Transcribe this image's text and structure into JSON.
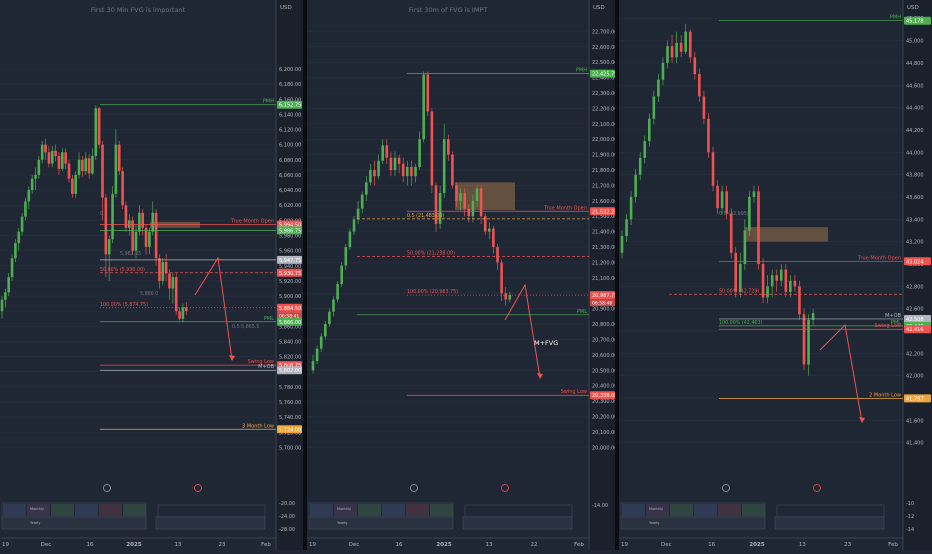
{
  "chart_data": [
    {
      "type": "candlestick",
      "title": "First 30 Min FVG is important",
      "currency": "USD",
      "x_ticks": [
        "19",
        "Dec",
        "16",
        "2025",
        "13",
        "23",
        "Feb"
      ],
      "y_range": [
        5690,
        6270
      ],
      "y_ticks": [
        "6,200.00",
        "6,180.00",
        "6,160.00",
        "6,140.00",
        "6,120.00",
        "6,100.00",
        "6,080.00",
        "6,060.00",
        "6,040.00",
        "6,020.00",
        "6,000.00",
        "5,980.00",
        "5,960.00",
        "5,940.00",
        "5,920.00",
        "5,900.00",
        "5,880.00",
        "5,860.00",
        "5,840.00",
        "5,820.00",
        "5,800.00",
        "5,780.00",
        "5,760.00",
        "5,740.00",
        "5,720.00",
        "5,700.00"
      ],
      "lower_ticks": [
        "-20.00",
        "-24.00",
        "-28.00"
      ],
      "candles": [
        [
          5880,
          5895,
          5870,
          5900
        ],
        [
          5895,
          5905,
          5885,
          5910
        ],
        [
          5905,
          5925,
          5900,
          5930
        ],
        [
          5925,
          5950,
          5920,
          5955
        ],
        [
          5950,
          5970,
          5945,
          5975
        ],
        [
          5970,
          5985,
          5960,
          5990
        ],
        [
          5985,
          6005,
          5980,
          6010
        ],
        [
          6005,
          6025,
          6000,
          6030
        ],
        [
          6025,
          6040,
          6015,
          6045
        ],
        [
          6040,
          6055,
          6035,
          6060
        ],
        [
          6055,
          6060,
          6040,
          6070
        ],
        [
          6060,
          6080,
          6055,
          6085
        ],
        [
          6080,
          6100,
          6075,
          6105
        ],
        [
          6100,
          6090,
          6080,
          6108
        ],
        [
          6090,
          6075,
          6070,
          6098
        ],
        [
          6075,
          6092,
          6070,
          6098
        ],
        [
          6092,
          6085,
          6078,
          6100
        ],
        [
          6085,
          6068,
          6060,
          6090
        ],
        [
          6068,
          6090,
          6065,
          6095
        ],
        [
          6090,
          6075,
          6068,
          6095
        ],
        [
          6075,
          6055,
          6050,
          6080
        ],
        [
          6055,
          6035,
          6030,
          6060
        ],
        [
          6035,
          6060,
          6030,
          6065
        ],
        [
          6060,
          6080,
          6055,
          6090
        ],
        [
          6080,
          6065,
          6058,
          6085
        ],
        [
          6065,
          6082,
          6060,
          6090
        ],
        [
          6082,
          6062,
          6055,
          6088
        ],
        [
          6062,
          6085,
          6060,
          6095
        ],
        [
          6085,
          6148,
          6080,
          6152
        ],
        [
          6148,
          6100,
          6095,
          6150
        ],
        [
          6100,
          6030,
          6000,
          6105
        ],
        [
          6030,
          5955,
          5925,
          6035
        ],
        [
          5955,
          5975,
          5920,
          5980
        ],
        [
          5975,
          6035,
          5970,
          6045
        ],
        [
          6035,
          6100,
          6030,
          6120
        ],
        [
          6100,
          6065,
          6060,
          6105
        ],
        [
          6065,
          6020,
          6015,
          6070
        ],
        [
          6020,
          5990,
          5985,
          6025
        ],
        [
          5990,
          6000,
          5980,
          6008
        ],
        [
          6000,
          5960,
          5955,
          6005
        ],
        [
          5960,
          5985,
          5950,
          5995
        ],
        [
          5985,
          6010,
          5980,
          6020
        ],
        [
          6010,
          5990,
          5980,
          6015
        ],
        [
          5990,
          5965,
          5955,
          5995
        ],
        [
          5965,
          5985,
          5955,
          5990
        ],
        [
          5985,
          6010,
          5980,
          6025
        ],
        [
          6010,
          5950,
          5940,
          6015
        ],
        [
          5950,
          5920,
          5910,
          5955
        ],
        [
          5920,
          5945,
          5915,
          5950
        ],
        [
          5945,
          5930,
          5920,
          5955
        ],
        [
          5930,
          5910,
          5895,
          5935
        ],
        [
          5910,
          5925,
          5890,
          5930
        ],
        [
          5925,
          5880,
          5875,
          5930
        ],
        [
          5880,
          5870,
          5868,
          5885
        ],
        [
          5870,
          5885,
          5865,
          5890
        ],
        [
          5885,
          5880,
          5875,
          5892
        ]
      ],
      "volume_panel": {
        "labels": [
          "Monthly",
          "Yearly"
        ]
      },
      "levels": [
        {
          "label": "PMH",
          "value": "6,152.75",
          "color": "#4caf50",
          "style": "solid"
        },
        {
          "label": "True Month Open",
          "value": "5,994.50",
          "color": "#ef5350",
          "style": "solid"
        },
        {
          "label": "",
          "value": "5,986.75",
          "color": "#4caf50",
          "style": "solid"
        },
        {
          "label": "",
          "value": "5,947.75",
          "color": "#b2b5be",
          "style": "solid"
        },
        {
          "label": "",
          "value": "5,930.75",
          "color": "#ef5350",
          "style": "dashed",
          "fib": "50.00% (5,930.00)"
        },
        {
          "label": "",
          "value": "5,884.50",
          "color": "#ef5350",
          "style": "dotted",
          "sub": "06:58:41",
          "fib": "100.00% (5,874.75)"
        },
        {
          "label": "PML",
          "value": "5,866.00",
          "color": "#4caf50",
          "style": "solid",
          "extra": "0.5  5,865.5"
        },
        {
          "label": "Swing Low",
          "value": "5,808.75",
          "color": "#ef5350",
          "style": "solid"
        },
        {
          "label": "M+OB",
          "value": "5,802.00",
          "color": "#b2b5be",
          "style": "solid"
        },
        {
          "label": "3 Month Low",
          "value": "5,724.00",
          "color": "#f0a53a",
          "style": "solid"
        }
      ],
      "partial_fib_labels": [
        "0",
        "5,981.25",
        "5,866.0"
      ]
    },
    {
      "type": "candlestick",
      "title": "First 30m of FVG is IMPT",
      "currency": "USD",
      "x_ticks": [
        "19",
        "Dec",
        "16",
        "2025",
        "13",
        "22",
        "Feb"
      ],
      "y_range": [
        19950,
        22800
      ],
      "y_ticks": [
        "22,700.00",
        "22,600.00",
        "22,500.00",
        "22,400.00",
        "22,300.00",
        "22,200.00",
        "22,100.00",
        "22,000.00",
        "21,900.00",
        "21,800.00",
        "21,700.00",
        "21,600.00",
        "21,500.00",
        "21,400.00",
        "21,300.00",
        "21,200.00",
        "21,100.00",
        "21,000.00",
        "20,900.00",
        "20,800.00",
        "20,700.00",
        "20,600.00",
        "20,500.00",
        "20,400.00",
        "20,300.00",
        "20,200.00",
        "20,100.00",
        "20,000.00"
      ],
      "lower_ticks": [
        "-14.00"
      ],
      "candles": [
        [
          20500,
          20560,
          20480,
          20600
        ],
        [
          20560,
          20640,
          20540,
          20660
        ],
        [
          20640,
          20720,
          20620,
          20740
        ],
        [
          20720,
          20800,
          20700,
          20820
        ],
        [
          20800,
          20880,
          20780,
          20900
        ],
        [
          20880,
          20960,
          20850,
          20980
        ],
        [
          20960,
          21060,
          20940,
          21080
        ],
        [
          21060,
          21180,
          21040,
          21200
        ],
        [
          21180,
          21300,
          21150,
          21320
        ],
        [
          21300,
          21400,
          21280,
          21420
        ],
        [
          21400,
          21480,
          21380,
          21500
        ],
        [
          21480,
          21550,
          21450,
          21600
        ],
        [
          21550,
          21640,
          21520,
          21660
        ],
        [
          21640,
          21720,
          21600,
          21760
        ],
        [
          21720,
          21800,
          21700,
          21840
        ],
        [
          21800,
          21760,
          21700,
          21860
        ],
        [
          21760,
          21860,
          21740,
          21900
        ],
        [
          21860,
          21960,
          21840,
          22000
        ],
        [
          21960,
          21880,
          21840,
          22000
        ],
        [
          21880,
          21800,
          21760,
          21920
        ],
        [
          21800,
          21880,
          21760,
          21920
        ],
        [
          21880,
          21840,
          21780,
          21900
        ],
        [
          21840,
          21760,
          21720,
          21880
        ],
        [
          21760,
          21820,
          21700,
          21860
        ],
        [
          21820,
          21760,
          21700,
          21860
        ],
        [
          21760,
          21820,
          21720,
          21840
        ],
        [
          21820,
          22000,
          21800,
          22050
        ],
        [
          22000,
          22420,
          21980,
          22440
        ],
        [
          22420,
          22180,
          22150,
          22440
        ],
        [
          22180,
          21700,
          21650,
          22200
        ],
        [
          21700,
          21450,
          21400,
          21720
        ],
        [
          21450,
          21650,
          21420,
          21700
        ],
        [
          21650,
          22000,
          21620,
          22100
        ],
        [
          22000,
          21900,
          21860,
          22030
        ],
        [
          21900,
          21700,
          21680,
          21920
        ],
        [
          21700,
          21600,
          21560,
          21720
        ],
        [
          21600,
          21650,
          21540,
          21680
        ],
        [
          21650,
          21550,
          21500,
          21680
        ],
        [
          21550,
          21500,
          21460,
          21580
        ],
        [
          21500,
          21600,
          21460,
          21640
        ],
        [
          21600,
          21680,
          21560,
          21700
        ],
        [
          21680,
          21500,
          21450,
          21700
        ],
        [
          21500,
          21400,
          21380,
          21520
        ],
        [
          21400,
          21420,
          21350,
          21460
        ],
        [
          21420,
          21300,
          21260,
          21440
        ],
        [
          21300,
          21200,
          21150,
          21320
        ],
        [
          21200,
          21000,
          20950,
          21220
        ],
        [
          21000,
          20960,
          20920,
          21040
        ],
        [
          20960,
          20990,
          20940,
          21010
        ]
      ],
      "volume_panel": {
        "labels": [
          "Monthly",
          "Yearly"
        ]
      },
      "levels": [
        {
          "label": "PMH",
          "value": "22,425.75",
          "color": "#4caf50",
          "style": "solid"
        },
        {
          "label": "True Month Open",
          "value": "21,532.25",
          "color": "#ef5350",
          "style": "solid"
        },
        {
          "label": "",
          "value": "",
          "color": "#f0a53a",
          "style": "dashed",
          "fib": "0.5 (21,483.00)"
        },
        {
          "label": "",
          "value": "",
          "color": "#ef5350",
          "style": "dashed",
          "fib": "50.00% (21,238.00)"
        },
        {
          "label": "",
          "value": "20,987.75",
          "color": "#ef5350",
          "style": "dotted",
          "sub": "06:58:46",
          "fib": "100.00% (20,983.75)"
        },
        {
          "label": "PML",
          "value": "",
          "color": "#4caf50",
          "style": "solid"
        },
        {
          "label": "Swing Low",
          "value": "20,338.00",
          "color": "#ef5350",
          "style": "solid"
        }
      ],
      "annotations": [
        "M+FVG"
      ]
    },
    {
      "type": "candlestick",
      "title": "",
      "currency": "USD",
      "x_ticks": [
        "19",
        "Dec",
        "16",
        "2025",
        "13",
        "23",
        "Feb"
      ],
      "y_range": [
        41290,
        45220
      ],
      "y_ticks": [
        "45,200",
        "45,000",
        "44,800",
        "44,600",
        "44,400",
        "44,200",
        "44,000",
        "43,800",
        "43,600",
        "43,400",
        "43,200",
        "43,000",
        "42,800",
        "42,600",
        "42,400",
        "42,200",
        "42,000",
        "41,800",
        "41,600",
        "41,400"
      ],
      "lower_ticks": [
        "-10",
        "-12",
        "-14"
      ],
      "candles": [
        [
          43100,
          43250,
          43050,
          43300
        ],
        [
          43250,
          43400,
          43200,
          43450
        ],
        [
          43400,
          43600,
          43350,
          43650
        ],
        [
          43600,
          43800,
          43550,
          43850
        ],
        [
          43800,
          43950,
          43750,
          44000
        ],
        [
          43950,
          44100,
          43900,
          44150
        ],
        [
          44100,
          44300,
          44050,
          44350
        ],
        [
          44300,
          44500,
          44250,
          44550
        ],
        [
          44500,
          44650,
          44450,
          44700
        ],
        [
          44650,
          44800,
          44600,
          44850
        ],
        [
          44800,
          44950,
          44750,
          45000
        ],
        [
          44950,
          44850,
          44800,
          45050
        ],
        [
          44850,
          44980,
          44800,
          45080
        ],
        [
          44980,
          44900,
          44850,
          45050
        ],
        [
          44900,
          45080,
          44880,
          45150
        ],
        [
          45080,
          44850,
          44800,
          45100
        ],
        [
          44850,
          44700,
          44650,
          44900
        ],
        [
          44700,
          44500,
          44450,
          44750
        ],
        [
          44500,
          44300,
          44250,
          44550
        ],
        [
          44300,
          44000,
          43950,
          44350
        ],
        [
          44000,
          43700,
          43650,
          44050
        ],
        [
          43700,
          43500,
          43450,
          43750
        ],
        [
          43500,
          43650,
          43450,
          43700
        ],
        [
          43650,
          43450,
          43400,
          43700
        ],
        [
          43450,
          43100,
          43050,
          43500
        ],
        [
          43100,
          42750,
          42700,
          43150
        ],
        [
          42750,
          43000,
          42700,
          43100
        ],
        [
          43000,
          43300,
          42950,
          43400
        ],
        [
          43300,
          43600,
          43250,
          43650
        ],
        [
          43600,
          43650,
          43550,
          43700
        ],
        [
          43650,
          43000,
          42950,
          43700
        ],
        [
          43000,
          42700,
          42650,
          43050
        ],
        [
          42700,
          42800,
          42650,
          42900
        ],
        [
          42800,
          42900,
          42700,
          42950
        ],
        [
          42900,
          42850,
          42750,
          42950
        ],
        [
          42850,
          42950,
          42800,
          43000
        ],
        [
          42950,
          42750,
          42700,
          43000
        ],
        [
          42750,
          42850,
          42700,
          42900
        ],
        [
          42850,
          42800,
          42750,
          42900
        ],
        [
          42800,
          42550,
          42500,
          42850
        ],
        [
          42550,
          42100,
          42050,
          42600
        ],
        [
          42100,
          42500,
          42000,
          42550
        ],
        [
          42500,
          42560,
          42450,
          42600
        ]
      ],
      "volume_panel": {
        "labels": [
          "Monthly",
          "Yearly"
        ]
      },
      "levels": [
        {
          "label": "PMH",
          "value": "45,178",
          "color": "#4caf50",
          "style": "solid"
        },
        {
          "label": "True Month Open",
          "value": "43,024",
          "color": "#ef5350",
          "style": "solid"
        },
        {
          "label": "",
          "value": "",
          "color": "#ef5350",
          "style": "dashed",
          "fib": "50.00% (42,729)"
        },
        {
          "label": "M+OB",
          "value": "42,508",
          "color": "#b2b5be",
          "style": "solid",
          "sub": "06:58:40"
        },
        {
          "label": "PML",
          "value": "42,446",
          "color": "#4caf50",
          "style": "solid",
          "fib": "100.00% (42,463)"
        },
        {
          "label": "Swing Low",
          "value": "42,416",
          "color": "#ef5350",
          "style": "solid"
        },
        {
          "label": "2 Month Low",
          "value": "41,797",
          "color": "#f0a53a",
          "style": "solid"
        }
      ],
      "partial_fib_labels": [
        "0.5 (42,995)"
      ]
    }
  ],
  "colors": {
    "background": "#1f2634",
    "up": "#4caf50",
    "down": "#ef5350",
    "grid": "#2a3242",
    "axis_text": "#b2b5be",
    "divider": "#0b0d12",
    "fvg_box": "#b8864b"
  }
}
